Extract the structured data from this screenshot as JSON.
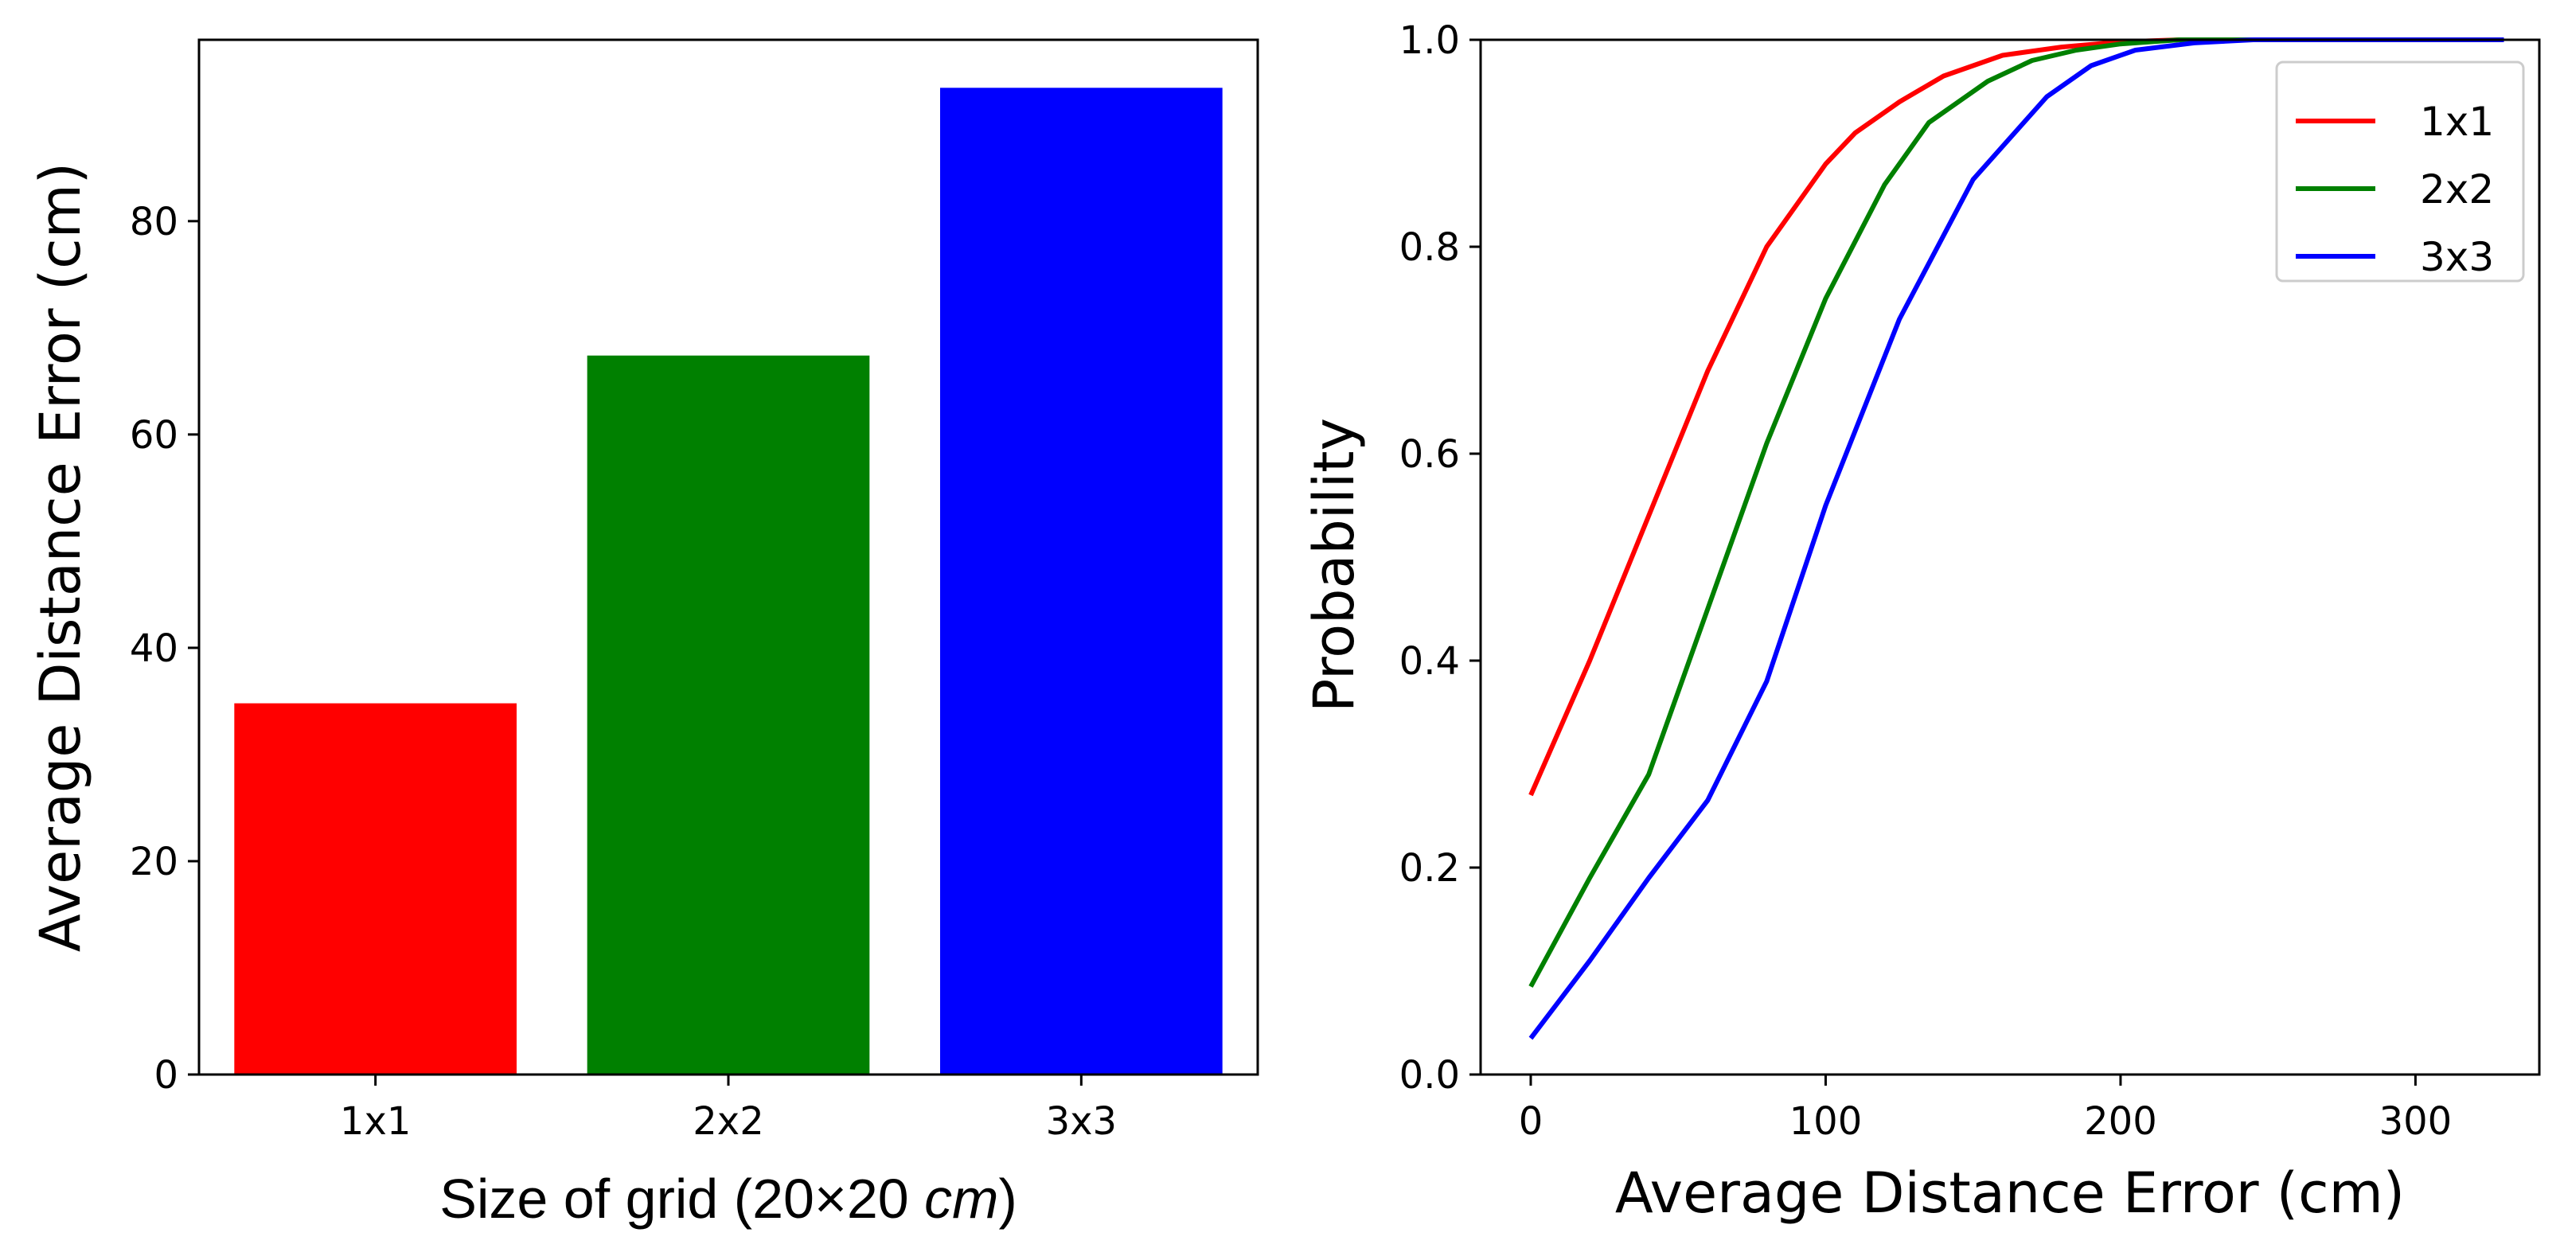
{
  "chart_data": [
    {
      "type": "bar",
      "categories": [
        "1x1",
        "2x2",
        "3x3"
      ],
      "values": [
        34.8,
        67.4,
        92.5
      ],
      "colors": [
        "#ff0000",
        "#008000",
        "#0000ff"
      ],
      "xlabel": "Size of grid (20×20 cm)",
      "xlabel_parts": {
        "prefix": "Size of grid (20×20 ",
        "italic": "cm",
        "suffix": ")"
      },
      "ylabel": "Average Distance Error (cm)",
      "ylim": [
        0,
        97
      ],
      "yticks": [
        0,
        20,
        40,
        60,
        80
      ],
      "ytick_labels": [
        "0",
        "20",
        "40",
        "60",
        "80"
      ]
    },
    {
      "type": "line",
      "xlabel": "Average Distance Error (cm)",
      "ylabel": "Probability",
      "xlim": [
        -17,
        342
      ],
      "ylim": [
        0.0,
        1.0
      ],
      "xticks": [
        0,
        100,
        200,
        300
      ],
      "xtick_labels": [
        "0",
        "100",
        "200",
        "300"
      ],
      "yticks": [
        0.0,
        0.2,
        0.4,
        0.6,
        0.8,
        1.0
      ],
      "ytick_labels": [
        "0.0",
        "0.2",
        "0.4",
        "0.6",
        "0.8",
        "1.0"
      ],
      "legend": "top-right",
      "series": [
        {
          "name": "1x1",
          "color": "#ff0000",
          "x": [
            0,
            20,
            40,
            60,
            80,
            100,
            110,
            125,
            140,
            160,
            180,
            200,
            220,
            260,
            330
          ],
          "y": [
            0.27,
            0.4,
            0.54,
            0.68,
            0.8,
            0.88,
            0.91,
            0.94,
            0.965,
            0.985,
            0.993,
            0.998,
            1.0,
            1.0,
            1.0
          ]
        },
        {
          "name": "2x2",
          "color": "#008000",
          "x": [
            0,
            20,
            40,
            60,
            80,
            100,
            120,
            135,
            155,
            170,
            185,
            200,
            220,
            260,
            330
          ],
          "y": [
            0.085,
            0.19,
            0.29,
            0.45,
            0.61,
            0.75,
            0.86,
            0.92,
            0.96,
            0.98,
            0.99,
            0.996,
            1.0,
            1.0,
            1.0
          ]
        },
        {
          "name": "3x3",
          "color": "#0000ff",
          "x": [
            0,
            20,
            40,
            60,
            80,
            100,
            125,
            150,
            175,
            190,
            205,
            225,
            245,
            300,
            330
          ],
          "y": [
            0.035,
            0.11,
            0.19,
            0.265,
            0.38,
            0.55,
            0.73,
            0.865,
            0.945,
            0.975,
            0.99,
            0.997,
            1.0,
            1.0,
            1.0
          ]
        }
      ]
    }
  ]
}
